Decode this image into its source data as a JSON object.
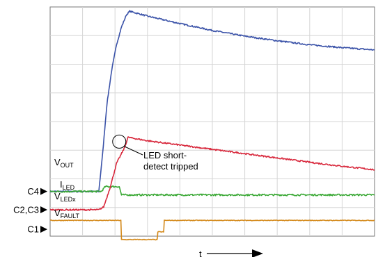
{
  "chart_data": {
    "type": "line",
    "title": "",
    "xlabel": "t",
    "ylabel": "",
    "grid": true,
    "grid_divisions": {
      "x": 10,
      "y": 8
    },
    "x_range": [
      0,
      10
    ],
    "channel_markers": [
      {
        "id": "c4",
        "label": "C4",
        "level": 1.56
      },
      {
        "id": "c2c3",
        "label": "C2,C3",
        "level": 0.92
      },
      {
        "id": "c1",
        "label": "C1",
        "level": 0.24
      }
    ],
    "trace_labels": [
      {
        "id": "vout",
        "main": "V",
        "sub": "OUT",
        "color": "#1a1a1a"
      },
      {
        "id": "iled",
        "main": "I",
        "sub": "LED",
        "color": "#1a1a1a"
      },
      {
        "id": "vledx",
        "main": "V",
        "sub": "LEDx",
        "color": "#1a1a1a"
      },
      {
        "id": "vfault",
        "main": "V",
        "sub": "FAULT",
        "color": "#1a1a1a"
      }
    ],
    "annotation": {
      "line1": "LED short-",
      "line2": "detect tripped",
      "x": 2.13,
      "y": 3.3
    },
    "series": [
      {
        "id": "vout",
        "color": "#3a52a8",
        "x": [
          0,
          1.5,
          1.62,
          1.75,
          1.9,
          2.05,
          2.2,
          2.35,
          2.45,
          3,
          4,
          5,
          6,
          7,
          8,
          9,
          10
        ],
        "y": [
          1.56,
          1.56,
          2.9,
          4.6,
          5.8,
          6.7,
          7.3,
          7.72,
          7.85,
          7.68,
          7.42,
          7.18,
          6.98,
          6.82,
          6.68,
          6.58,
          6.5
        ],
        "noise": 0.025
      },
      {
        "id": "iled",
        "color": "#3aa835",
        "x": [
          0,
          1.58,
          1.7,
          2.13,
          2.2,
          10
        ],
        "y": [
          1.56,
          1.56,
          1.73,
          1.73,
          1.44,
          1.44
        ],
        "noise": 0.03
      },
      {
        "id": "vledx",
        "color": "#d8283c",
        "x": [
          0,
          1.5,
          1.65,
          1.85,
          2.05,
          2.3,
          2.4,
          3,
          4,
          5,
          6,
          7,
          8,
          9,
          10
        ],
        "y": [
          0.92,
          0.92,
          1.02,
          1.7,
          2.55,
          3.1,
          3.45,
          3.33,
          3.18,
          3.03,
          2.88,
          2.73,
          2.58,
          2.44,
          2.32
        ],
        "noise": 0.025
      },
      {
        "id": "vfault",
        "color": "#d48a1c",
        "x": [
          0,
          2.18,
          2.2,
          3.3,
          3.32,
          3.5,
          3.52,
          10
        ],
        "y": [
          0.55,
          0.55,
          -0.12,
          -0.12,
          0.15,
          0.15,
          0.55,
          0.55
        ],
        "noise": 0.012
      }
    ]
  }
}
